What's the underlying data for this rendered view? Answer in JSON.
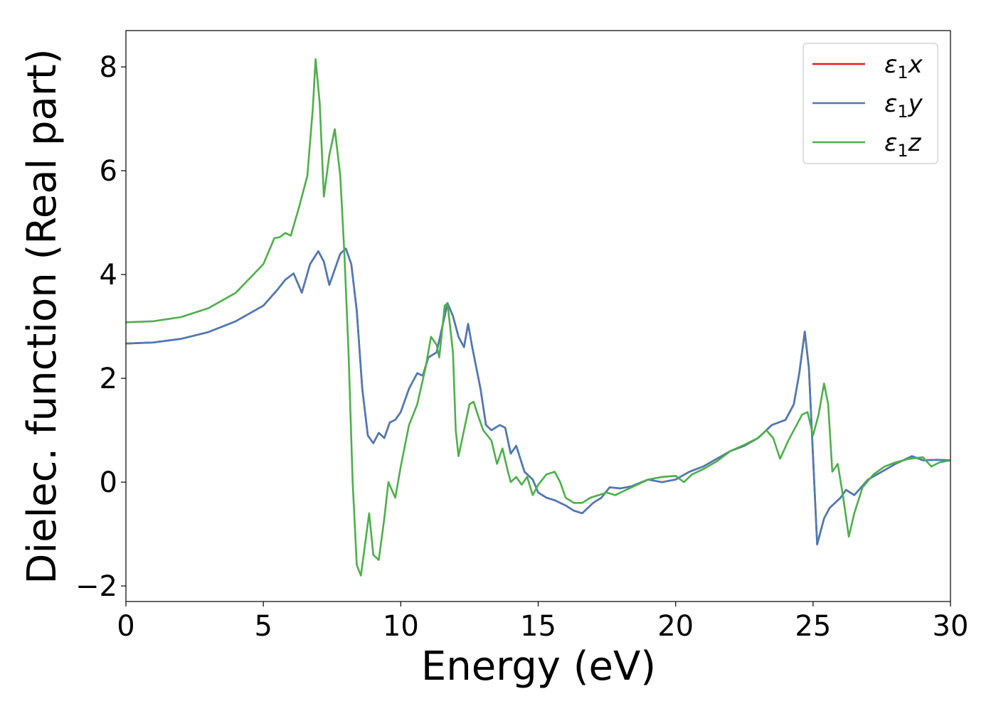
{
  "chart_data": {
    "type": "line",
    "xlabel": "Energy (eV)",
    "ylabel": "Dielec. function (Real part)",
    "xlim": [
      0,
      30
    ],
    "ylim": [
      -2.3,
      8.7
    ],
    "x_ticks": [
      0,
      5,
      10,
      15,
      20,
      25,
      30
    ],
    "y_ticks": [
      -2,
      0,
      2,
      4,
      6,
      8
    ],
    "grid": false,
    "legend_position": "top-right",
    "series": [
      {
        "name": "ε1x",
        "label_base": "ε",
        "label_sub": "1",
        "label_tail": "x",
        "color": "#e41a1c",
        "points": [
          [
            0,
            2.67
          ],
          [
            1,
            2.69
          ],
          [
            2,
            2.76
          ],
          [
            3,
            2.89
          ],
          [
            4,
            3.1
          ],
          [
            5,
            3.4
          ],
          [
            5.5,
            3.7
          ],
          [
            5.8,
            3.9
          ],
          [
            6.1,
            4.02
          ],
          [
            6.4,
            3.65
          ],
          [
            6.7,
            4.2
          ],
          [
            7,
            4.45
          ],
          [
            7.2,
            4.25
          ],
          [
            7.4,
            3.8
          ],
          [
            7.6,
            4.1
          ],
          [
            7.8,
            4.4
          ],
          [
            8.0,
            4.5
          ],
          [
            8.2,
            4.2
          ],
          [
            8.4,
            3.3
          ],
          [
            8.6,
            1.8
          ],
          [
            8.8,
            0.9
          ],
          [
            9.0,
            0.75
          ],
          [
            9.2,
            0.95
          ],
          [
            9.4,
            0.85
          ],
          [
            9.6,
            1.15
          ],
          [
            9.8,
            1.2
          ],
          [
            10,
            1.35
          ],
          [
            10.3,
            1.8
          ],
          [
            10.6,
            2.1
          ],
          [
            10.8,
            2.05
          ],
          [
            11,
            2.4
          ],
          [
            11.3,
            2.5
          ],
          [
            11.6,
            3.2
          ],
          [
            11.7,
            3.45
          ],
          [
            11.9,
            3.2
          ],
          [
            12.1,
            2.8
          ],
          [
            12.3,
            2.6
          ],
          [
            12.45,
            3.05
          ],
          [
            12.6,
            2.6
          ],
          [
            12.9,
            1.8
          ],
          [
            13.1,
            1.1
          ],
          [
            13.3,
            1.0
          ],
          [
            13.6,
            1.1
          ],
          [
            13.8,
            1.05
          ],
          [
            14.0,
            0.55
          ],
          [
            14.2,
            0.7
          ],
          [
            14.5,
            0.2
          ],
          [
            14.8,
            0.05
          ],
          [
            15.0,
            -0.2
          ],
          [
            15.3,
            -0.3
          ],
          [
            15.6,
            -0.35
          ],
          [
            16.0,
            -0.45
          ],
          [
            16.3,
            -0.55
          ],
          [
            16.6,
            -0.6
          ],
          [
            17.0,
            -0.4
          ],
          [
            17.3,
            -0.3
          ],
          [
            17.6,
            -0.1
          ],
          [
            18.0,
            -0.12
          ],
          [
            18.4,
            -0.08
          ],
          [
            19.0,
            0.05
          ],
          [
            19.5,
            0.0
          ],
          [
            20.0,
            0.05
          ],
          [
            20.5,
            0.2
          ],
          [
            21,
            0.3
          ],
          [
            21.5,
            0.45
          ],
          [
            22,
            0.6
          ],
          [
            22.5,
            0.7
          ],
          [
            23,
            0.85
          ],
          [
            23.5,
            1.1
          ],
          [
            24,
            1.2
          ],
          [
            24.3,
            1.5
          ],
          [
            24.5,
            2.1
          ],
          [
            24.7,
            2.9
          ],
          [
            24.85,
            2.2
          ],
          [
            25.0,
            0.5
          ],
          [
            25.15,
            -1.2
          ],
          [
            25.4,
            -0.7
          ],
          [
            25.6,
            -0.5
          ],
          [
            25.8,
            -0.4
          ],
          [
            26.0,
            -0.3
          ],
          [
            26.2,
            -0.15
          ],
          [
            26.5,
            -0.25
          ],
          [
            27,
            0.05
          ],
          [
            27.5,
            0.2
          ],
          [
            28,
            0.35
          ],
          [
            28.6,
            0.5
          ],
          [
            29,
            0.42
          ],
          [
            29.5,
            0.43
          ],
          [
            30,
            0.42
          ]
        ]
      },
      {
        "name": "ε1y",
        "label_base": "ε",
        "label_sub": "1",
        "label_tail": "y",
        "color": "#4a7bb7",
        "points": [
          [
            0,
            2.67
          ],
          [
            1,
            2.69
          ],
          [
            2,
            2.76
          ],
          [
            3,
            2.89
          ],
          [
            4,
            3.1
          ],
          [
            5,
            3.4
          ],
          [
            5.5,
            3.7
          ],
          [
            5.8,
            3.9
          ],
          [
            6.1,
            4.02
          ],
          [
            6.4,
            3.65
          ],
          [
            6.7,
            4.2
          ],
          [
            7,
            4.45
          ],
          [
            7.2,
            4.25
          ],
          [
            7.4,
            3.8
          ],
          [
            7.6,
            4.1
          ],
          [
            7.8,
            4.4
          ],
          [
            8.0,
            4.5
          ],
          [
            8.2,
            4.2
          ],
          [
            8.4,
            3.3
          ],
          [
            8.6,
            1.8
          ],
          [
            8.8,
            0.9
          ],
          [
            9.0,
            0.75
          ],
          [
            9.2,
            0.95
          ],
          [
            9.4,
            0.85
          ],
          [
            9.6,
            1.15
          ],
          [
            9.8,
            1.2
          ],
          [
            10,
            1.35
          ],
          [
            10.3,
            1.8
          ],
          [
            10.6,
            2.1
          ],
          [
            10.8,
            2.05
          ],
          [
            11,
            2.4
          ],
          [
            11.3,
            2.5
          ],
          [
            11.6,
            3.2
          ],
          [
            11.7,
            3.45
          ],
          [
            11.9,
            3.2
          ],
          [
            12.1,
            2.8
          ],
          [
            12.3,
            2.6
          ],
          [
            12.45,
            3.05
          ],
          [
            12.6,
            2.6
          ],
          [
            12.9,
            1.8
          ],
          [
            13.1,
            1.1
          ],
          [
            13.3,
            1.0
          ],
          [
            13.6,
            1.1
          ],
          [
            13.8,
            1.05
          ],
          [
            14.0,
            0.55
          ],
          [
            14.2,
            0.7
          ],
          [
            14.5,
            0.2
          ],
          [
            14.8,
            0.05
          ],
          [
            15.0,
            -0.2
          ],
          [
            15.3,
            -0.3
          ],
          [
            15.6,
            -0.35
          ],
          [
            16.0,
            -0.45
          ],
          [
            16.3,
            -0.55
          ],
          [
            16.6,
            -0.6
          ],
          [
            17.0,
            -0.4
          ],
          [
            17.3,
            -0.3
          ],
          [
            17.6,
            -0.1
          ],
          [
            18.0,
            -0.12
          ],
          [
            18.4,
            -0.08
          ],
          [
            19.0,
            0.05
          ],
          [
            19.5,
            0.0
          ],
          [
            20.0,
            0.05
          ],
          [
            20.5,
            0.2
          ],
          [
            21,
            0.3
          ],
          [
            21.5,
            0.45
          ],
          [
            22,
            0.6
          ],
          [
            22.5,
            0.7
          ],
          [
            23,
            0.85
          ],
          [
            23.5,
            1.1
          ],
          [
            24,
            1.2
          ],
          [
            24.3,
            1.5
          ],
          [
            24.5,
            2.1
          ],
          [
            24.7,
            2.9
          ],
          [
            24.85,
            2.2
          ],
          [
            25.0,
            0.5
          ],
          [
            25.15,
            -1.2
          ],
          [
            25.4,
            -0.7
          ],
          [
            25.6,
            -0.5
          ],
          [
            25.8,
            -0.4
          ],
          [
            26.0,
            -0.3
          ],
          [
            26.2,
            -0.15
          ],
          [
            26.5,
            -0.25
          ],
          [
            27,
            0.05
          ],
          [
            27.5,
            0.2
          ],
          [
            28,
            0.35
          ],
          [
            28.6,
            0.5
          ],
          [
            29,
            0.42
          ],
          [
            29.5,
            0.43
          ],
          [
            30,
            0.42
          ]
        ]
      },
      {
        "name": "ε1z",
        "label_base": "ε",
        "label_sub": "1",
        "label_tail": "z",
        "color": "#4daf4a",
        "points": [
          [
            0,
            3.08
          ],
          [
            1,
            3.1
          ],
          [
            2,
            3.18
          ],
          [
            3,
            3.35
          ],
          [
            4,
            3.65
          ],
          [
            5,
            4.2
          ],
          [
            5.4,
            4.7
          ],
          [
            5.6,
            4.72
          ],
          [
            5.8,
            4.8
          ],
          [
            6.0,
            4.75
          ],
          [
            6.3,
            5.3
          ],
          [
            6.6,
            5.9
          ],
          [
            6.8,
            7.2
          ],
          [
            6.9,
            8.15
          ],
          [
            7.05,
            7.3
          ],
          [
            7.2,
            5.5
          ],
          [
            7.4,
            6.3
          ],
          [
            7.6,
            6.8
          ],
          [
            7.8,
            5.9
          ],
          [
            7.95,
            4.4
          ],
          [
            8.1,
            2.5
          ],
          [
            8.25,
            0.0
          ],
          [
            8.4,
            -1.6
          ],
          [
            8.55,
            -1.8
          ],
          [
            8.7,
            -1.2
          ],
          [
            8.85,
            -0.6
          ],
          [
            9.0,
            -1.4
          ],
          [
            9.2,
            -1.5
          ],
          [
            9.4,
            -0.7
          ],
          [
            9.55,
            0.0
          ],
          [
            9.8,
            -0.3
          ],
          [
            10.0,
            0.3
          ],
          [
            10.3,
            1.1
          ],
          [
            10.6,
            1.5
          ],
          [
            10.9,
            2.2
          ],
          [
            11.1,
            2.8
          ],
          [
            11.3,
            2.65
          ],
          [
            11.4,
            2.4
          ],
          [
            11.6,
            3.4
          ],
          [
            11.7,
            3.45
          ],
          [
            11.9,
            2.5
          ],
          [
            12.0,
            1.0
          ],
          [
            12.1,
            0.5
          ],
          [
            12.3,
            1.0
          ],
          [
            12.5,
            1.5
          ],
          [
            12.65,
            1.55
          ],
          [
            12.8,
            1.3
          ],
          [
            13.0,
            1.0
          ],
          [
            13.3,
            0.8
          ],
          [
            13.5,
            0.35
          ],
          [
            13.7,
            0.65
          ],
          [
            13.9,
            0.2
          ],
          [
            14.0,
            0.0
          ],
          [
            14.2,
            0.1
          ],
          [
            14.4,
            -0.05
          ],
          [
            14.6,
            0.1
          ],
          [
            14.8,
            -0.25
          ],
          [
            15.0,
            -0.05
          ],
          [
            15.3,
            0.15
          ],
          [
            15.6,
            0.2
          ],
          [
            15.8,
            0.0
          ],
          [
            16.0,
            -0.3
          ],
          [
            16.3,
            -0.4
          ],
          [
            16.6,
            -0.4
          ],
          [
            16.9,
            -0.3
          ],
          [
            17.2,
            -0.25
          ],
          [
            17.5,
            -0.2
          ],
          [
            17.8,
            -0.25
          ],
          [
            18.2,
            -0.15
          ],
          [
            18.6,
            -0.05
          ],
          [
            19.0,
            0.05
          ],
          [
            19.5,
            0.1
          ],
          [
            20.0,
            0.12
          ],
          [
            20.3,
            0.0
          ],
          [
            20.6,
            0.15
          ],
          [
            21,
            0.25
          ],
          [
            21.5,
            0.4
          ],
          [
            22,
            0.6
          ],
          [
            22.5,
            0.72
          ],
          [
            23,
            0.85
          ],
          [
            23.3,
            1.0
          ],
          [
            23.55,
            0.85
          ],
          [
            23.8,
            0.45
          ],
          [
            24.1,
            0.8
          ],
          [
            24.4,
            1.1
          ],
          [
            24.6,
            1.3
          ],
          [
            24.8,
            1.35
          ],
          [
            25.0,
            0.9
          ],
          [
            25.2,
            1.3
          ],
          [
            25.4,
            1.9
          ],
          [
            25.55,
            1.5
          ],
          [
            25.7,
            0.2
          ],
          [
            25.9,
            0.35
          ],
          [
            26.1,
            -0.3
          ],
          [
            26.3,
            -1.05
          ],
          [
            26.5,
            -0.6
          ],
          [
            26.8,
            -0.1
          ],
          [
            27.2,
            0.15
          ],
          [
            27.6,
            0.3
          ],
          [
            28.0,
            0.38
          ],
          [
            28.5,
            0.45
          ],
          [
            29.0,
            0.48
          ],
          [
            29.3,
            0.3
          ],
          [
            29.6,
            0.38
          ],
          [
            30,
            0.42
          ]
        ]
      }
    ]
  }
}
